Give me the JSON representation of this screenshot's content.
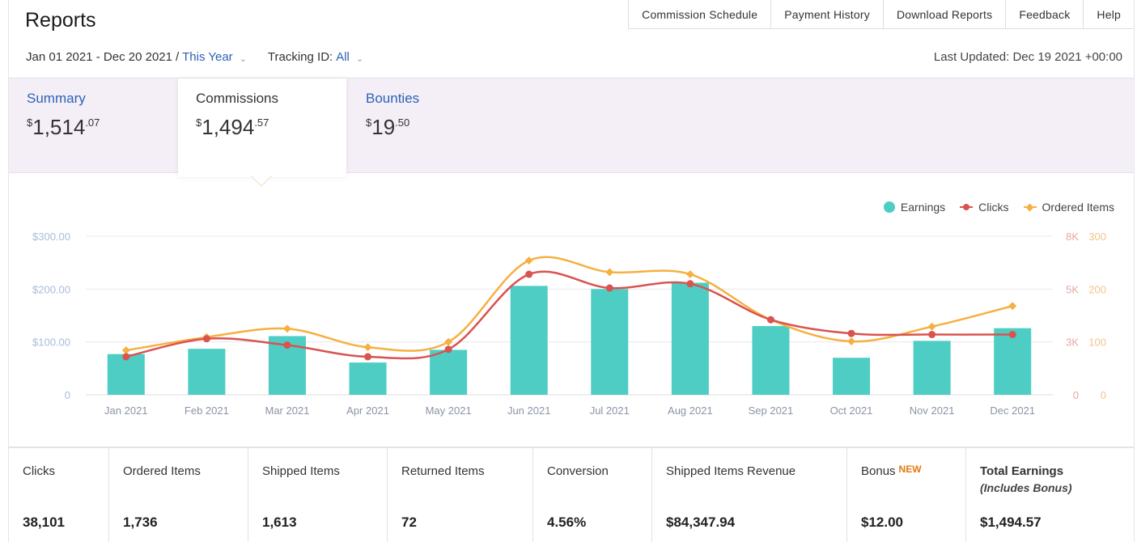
{
  "header": {
    "title": "Reports"
  },
  "nav": {
    "items": [
      "Commission Schedule",
      "Payment History",
      "Download Reports",
      "Feedback",
      "Help"
    ]
  },
  "filters": {
    "date_range": "Jan 01 2021 - Dec 20 2021",
    "separator": "/",
    "period": "This Year",
    "tracking_label": "Tracking ID:",
    "tracking_value": "All",
    "last_updated": "Last Updated: Dec 19 2021 +00:00"
  },
  "tabs": [
    {
      "label": "Summary",
      "currency": "$",
      "whole": "1,514",
      "cents": ".07",
      "active": false
    },
    {
      "label": "Commissions",
      "currency": "$",
      "whole": "1,494",
      "cents": ".57",
      "active": true
    },
    {
      "label": "Bounties",
      "currency": "$",
      "whole": "19",
      "cents": ".50",
      "active": false
    }
  ],
  "chart_data": {
    "type": "bar+line",
    "categories": [
      "Jan 2021",
      "Feb 2021",
      "Mar 2021",
      "Apr 2021",
      "May 2021",
      "Jun 2021",
      "Jul 2021",
      "Aug 2021",
      "Sep 2021",
      "Oct 2021",
      "Nov 2021",
      "Dec 2021"
    ],
    "series": [
      {
        "name": "Earnings",
        "type": "bar",
        "axis": "left",
        "color": "#4ecdc4",
        "values": [
          77,
          87,
          111,
          61,
          85,
          206,
          200,
          212,
          130,
          70,
          102,
          126
        ]
      },
      {
        "name": "Clicks",
        "type": "line",
        "axis": "right-clicks",
        "color": "#d9534f",
        "values": [
          1800,
          2650,
          2350,
          1800,
          2150,
          5700,
          5050,
          5250,
          3550,
          2900,
          2850,
          2850
        ]
      },
      {
        "name": "Ordered Items",
        "type": "line",
        "axis": "right-items",
        "color": "#f5b041",
        "values": [
          84,
          109,
          125,
          90,
          100,
          254,
          232,
          228,
          142,
          101,
          129,
          168
        ]
      }
    ],
    "left_axis": {
      "ticks": [
        "0",
        "$100.00",
        "$200.00",
        "$300.00"
      ],
      "max": 300
    },
    "right_axis_clicks": {
      "ticks": [
        "0",
        "3K",
        "5K",
        "8K"
      ],
      "max": 7500
    },
    "right_axis_items": {
      "ticks": [
        "0",
        "100",
        "200",
        "300"
      ],
      "max": 300
    },
    "legend_position": "top-right",
    "grid": true
  },
  "stats": [
    {
      "label": "Clicks",
      "value": "38,101"
    },
    {
      "label": "Ordered Items",
      "value": "1,736"
    },
    {
      "label": "Shipped Items",
      "value": "1,613"
    },
    {
      "label": "Returned Items",
      "value": "72"
    },
    {
      "label": "Conversion",
      "value": "4.56%"
    },
    {
      "label": "Shipped Items Revenue",
      "value": "$84,347.94"
    },
    {
      "label": "Bonus",
      "badge": "NEW",
      "value": "$12.00"
    },
    {
      "label": "Total Earnings",
      "note": "(Includes Bonus)",
      "value": "$1,494.57"
    }
  ]
}
